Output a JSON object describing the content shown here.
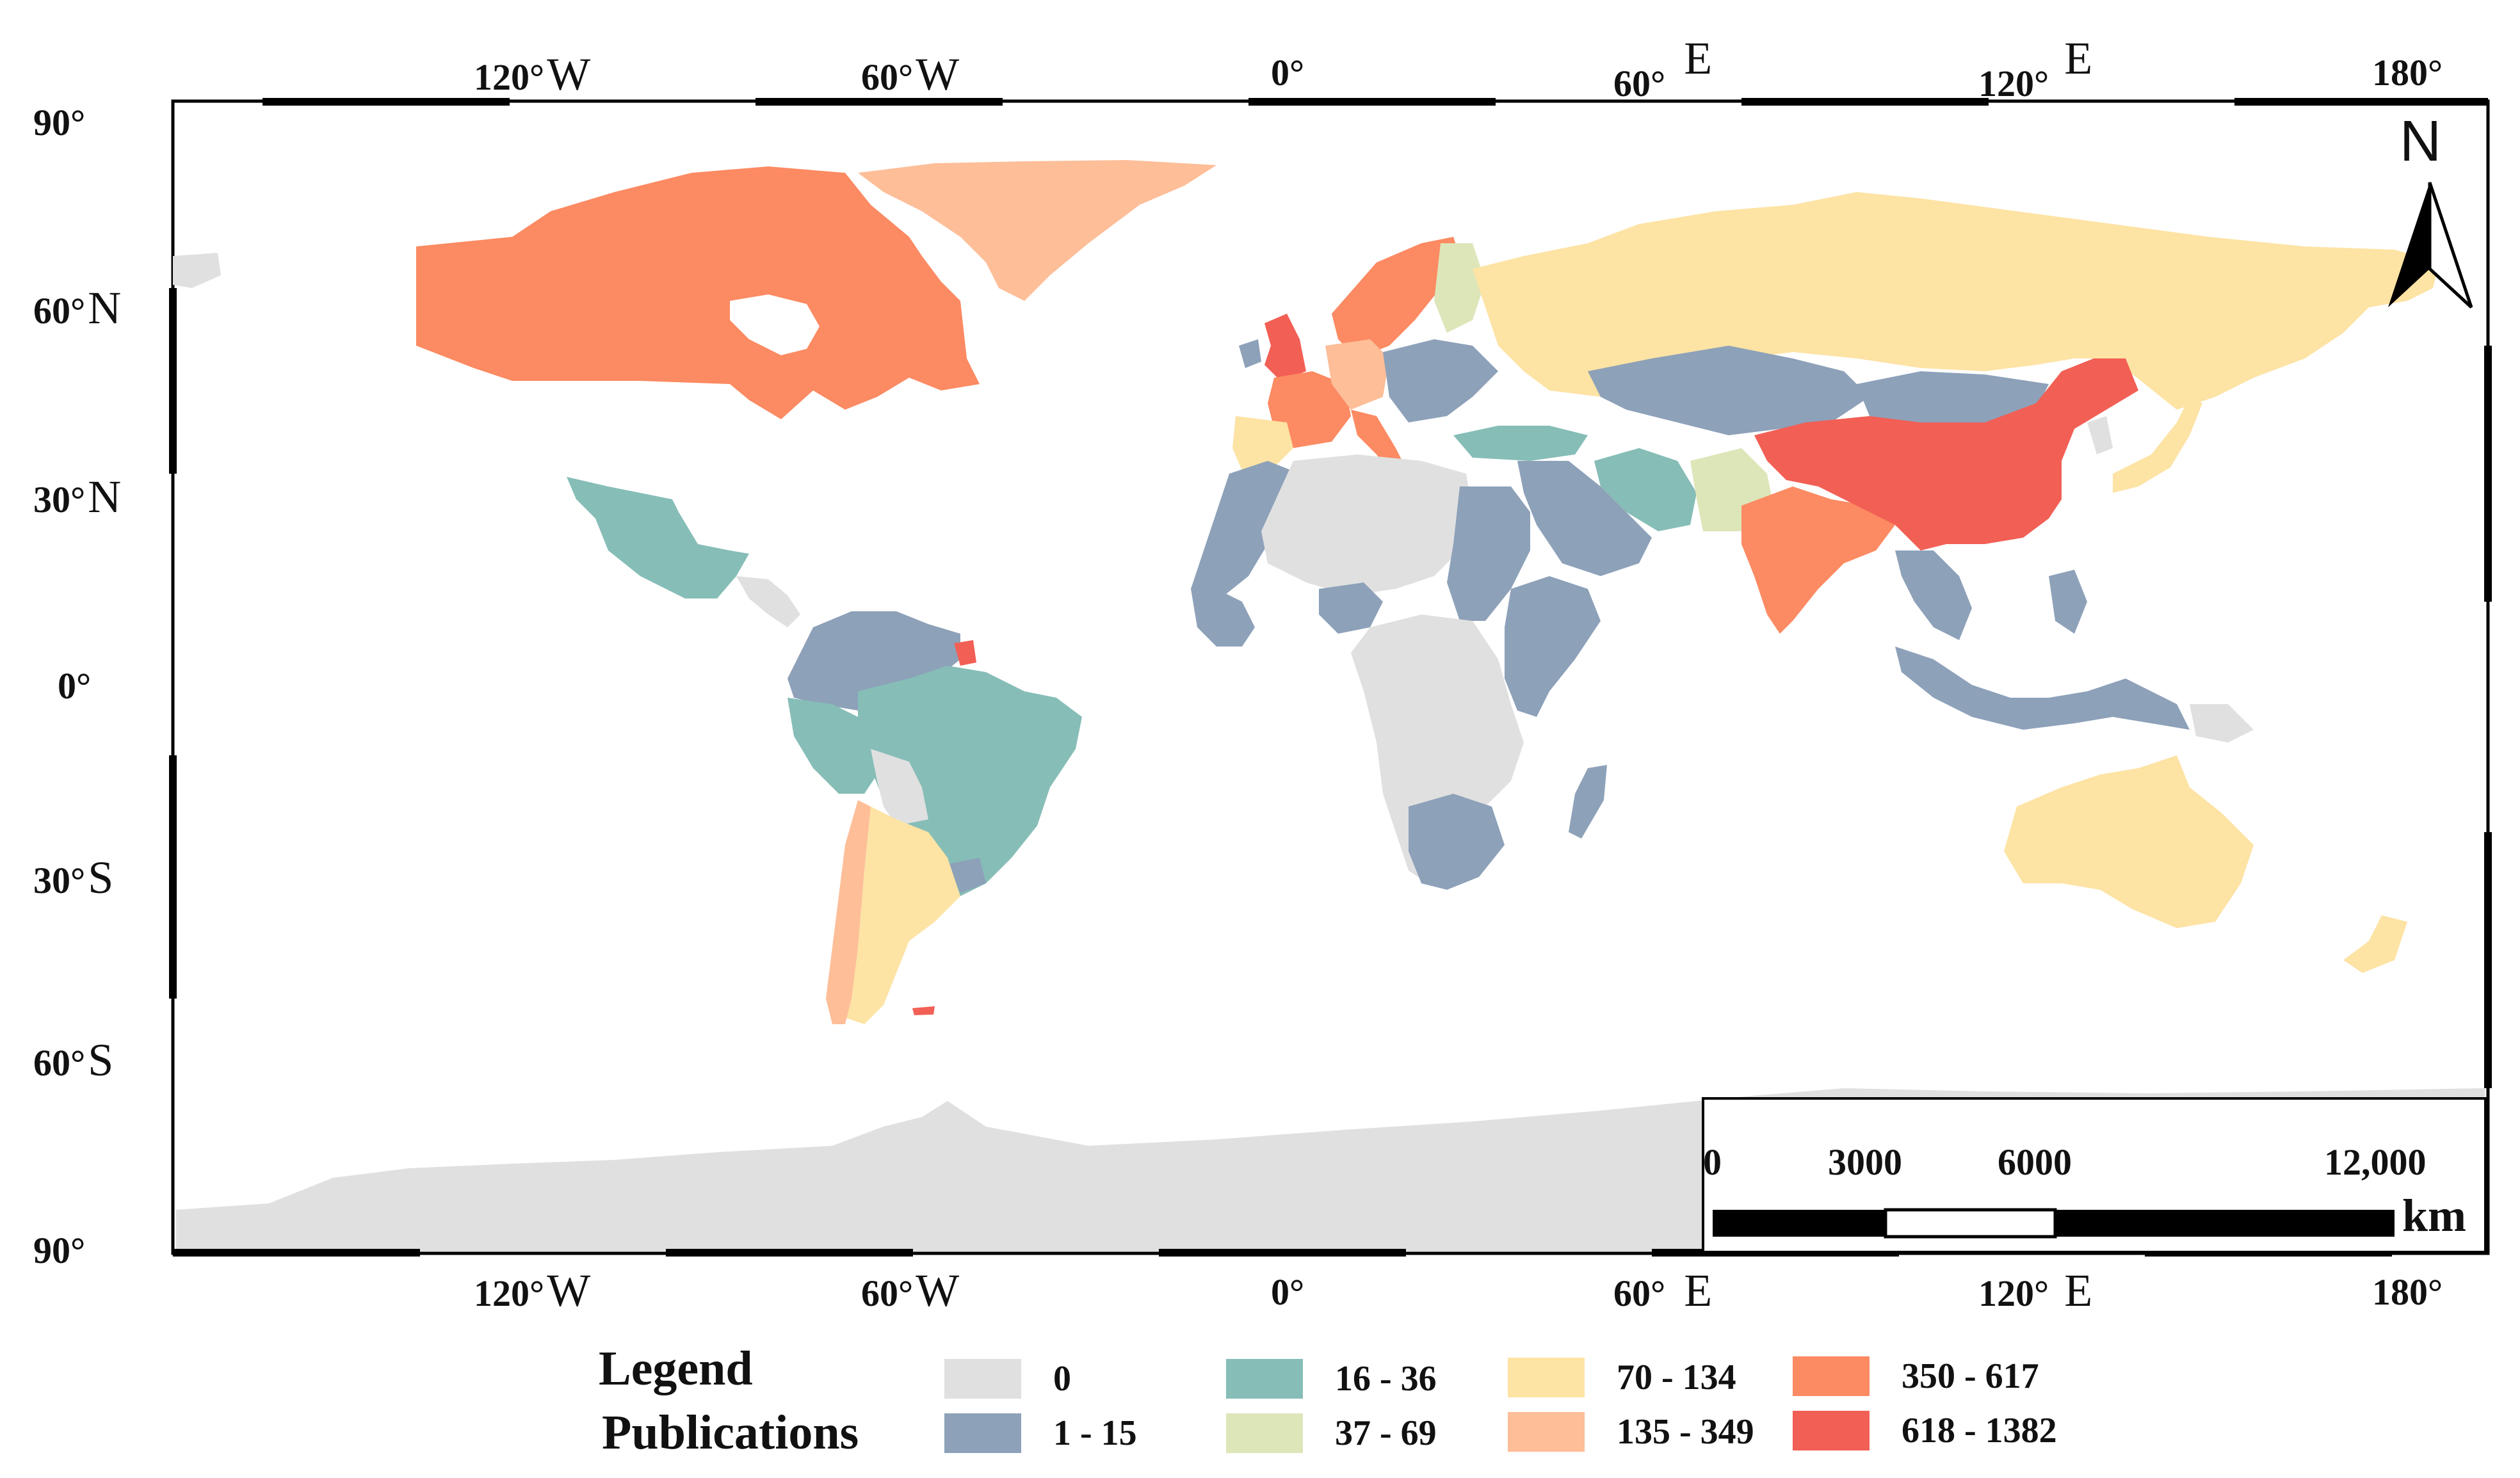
{
  "map": {
    "top_ticks": [
      {
        "num": "120°",
        "dir": "W"
      },
      {
        "num": "60°",
        "dir": "W"
      },
      {
        "num": "0°",
        "dir": ""
      },
      {
        "num": "60°",
        "dir": "E"
      },
      {
        "num": "120°",
        "dir": "E"
      },
      {
        "num": "180°",
        "dir": ""
      }
    ],
    "bottom_ticks": [
      {
        "num": "120°",
        "dir": "W"
      },
      {
        "num": "60°",
        "dir": "W"
      },
      {
        "num": "0°",
        "dir": ""
      },
      {
        "num": "60°",
        "dir": "E"
      },
      {
        "num": "120°",
        "dir": "E"
      },
      {
        "num": "180°",
        "dir": ""
      }
    ],
    "left_ticks": [
      {
        "num": "90°",
        "dir": ""
      },
      {
        "num": "60°",
        "dir": "N"
      },
      {
        "num": "30°",
        "dir": "N"
      },
      {
        "num": "0°",
        "dir": ""
      },
      {
        "num": "30°",
        "dir": "S"
      },
      {
        "num": "60°",
        "dir": "S"
      },
      {
        "num": "90°",
        "dir": ""
      }
    ],
    "north_arrow": "N",
    "scale_bar": {
      "labels": [
        "0",
        "3000",
        "6000",
        "12,000"
      ],
      "unit": "km"
    }
  },
  "legend": {
    "title_line1": "Legend",
    "title_line2": "Publications",
    "classes": [
      {
        "label": "0",
        "color": "#e0e0e0"
      },
      {
        "label": "1 - 15",
        "color": "#8da1b9"
      },
      {
        "label": "16 - 36",
        "color": "#86bdb7"
      },
      {
        "label": "37 - 69",
        "color": "#dde6b9"
      },
      {
        "label": "70 - 134",
        "color": "#fde3a4"
      },
      {
        "label": "135 - 349",
        "color": "#fdbe98"
      },
      {
        "label": "350 - 617",
        "color": "#fc8a62"
      },
      {
        "label": "618 - 1382",
        "color": "#f25f55"
      }
    ]
  }
}
